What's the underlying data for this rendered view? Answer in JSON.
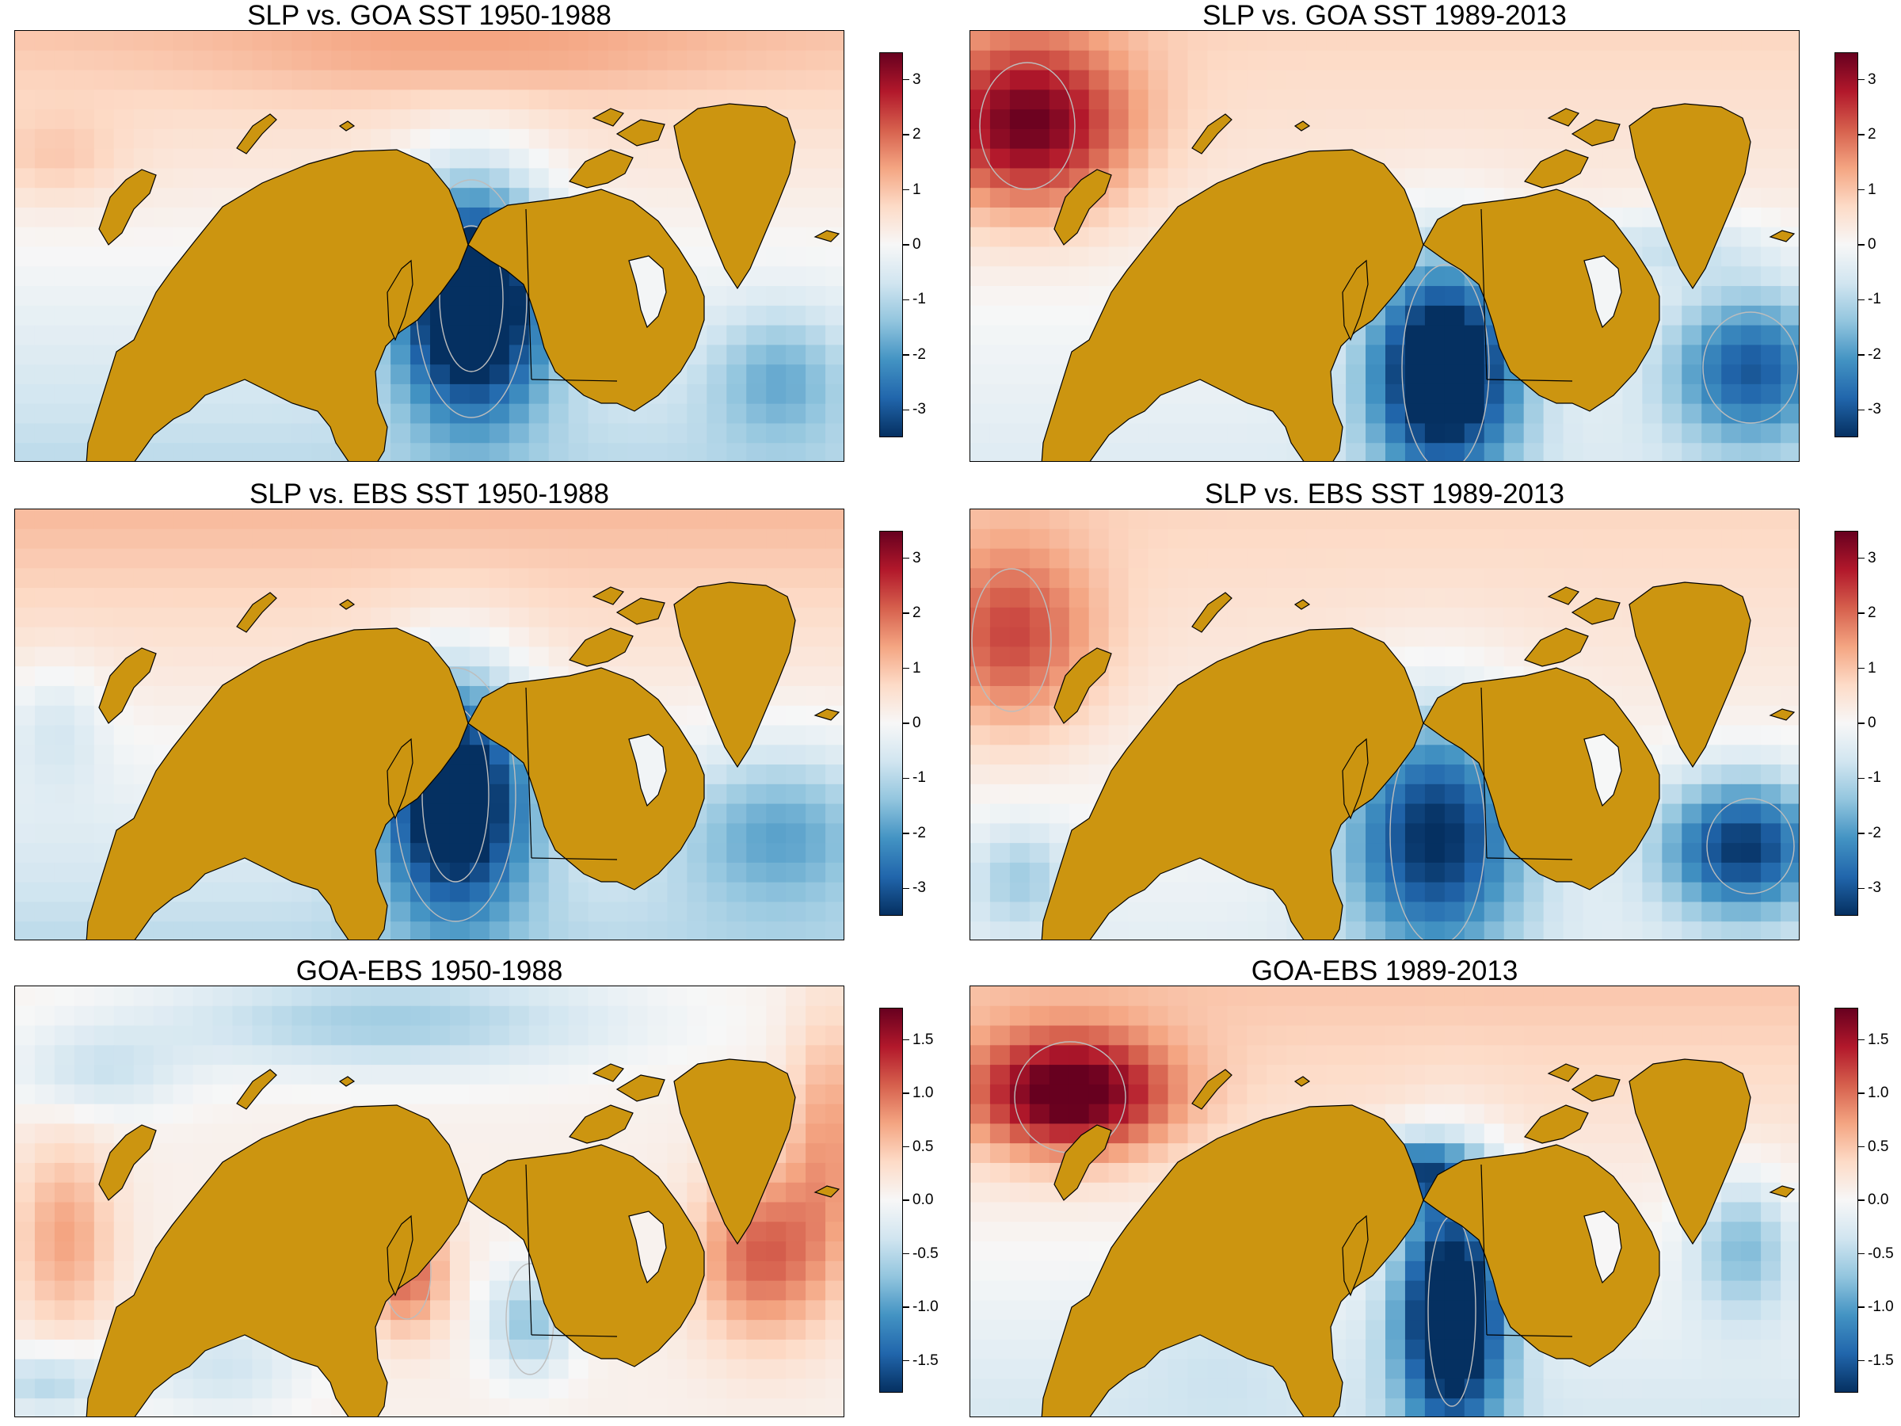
{
  "panels": [
    {
      "id": "p1",
      "title": "SLP vs. GOA SST 1950-1988",
      "scale": "slp",
      "pattern": "goa_early"
    },
    {
      "id": "p2",
      "title": "SLP vs. GOA SST 1989-2013",
      "scale": "slp",
      "pattern": "goa_late"
    },
    {
      "id": "p3",
      "title": "SLP vs. EBS SST 1950-1988",
      "scale": "slp",
      "pattern": "ebs_early"
    },
    {
      "id": "p4",
      "title": "SLP vs. EBS SST 1989-2013",
      "scale": "slp",
      "pattern": "ebs_late"
    },
    {
      "id": "p5",
      "title": "GOA-EBS 1950-1988",
      "scale": "diff",
      "pattern": "diff_early"
    },
    {
      "id": "p6",
      "title": "GOA-EBS 1989-2013",
      "scale": "diff",
      "pattern": "diff_late"
    }
  ],
  "scales": {
    "slp": {
      "min": -3.5,
      "max": 3.5,
      "ticks": [
        "3",
        "2",
        "1",
        "0",
        "-1",
        "-2",
        "-3"
      ],
      "tick_values": [
        3,
        2,
        1,
        0,
        -1,
        -2,
        -3
      ]
    },
    "diff": {
      "min": -1.8,
      "max": 1.8,
      "ticks": [
        "1.5",
        "1.0",
        "0.5",
        "0.0",
        "-0.5",
        "-1.0",
        "-1.5"
      ],
      "tick_values": [
        1.5,
        1.0,
        0.5,
        0.0,
        -0.5,
        -1.0,
        -1.5
      ]
    }
  },
  "colors": {
    "land": "#CC9510",
    "land_outline": "#000000",
    "contour": "#BDBDBD",
    "palette": [
      "#67001F",
      "#B2182B",
      "#D6604D",
      "#F4A582",
      "#FDDBC7",
      "#F7F7F7",
      "#D1E5F0",
      "#92C5DE",
      "#4393C3",
      "#2166AC",
      "#053061"
    ]
  }
}
